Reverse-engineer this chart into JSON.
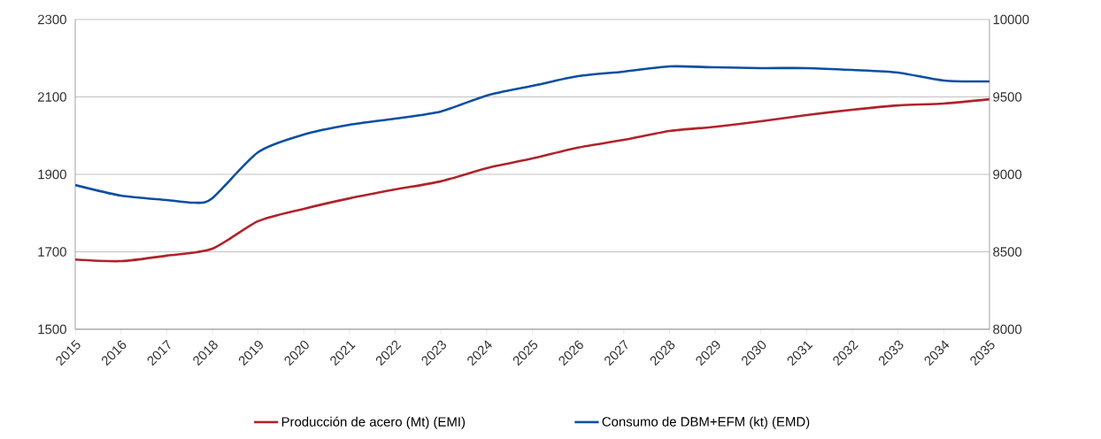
{
  "chart_data": {
    "type": "line",
    "xlim": [
      2015,
      2035
    ],
    "xticks": [
      2015,
      2016,
      2017,
      2018,
      2019,
      2020,
      2021,
      2022,
      2023,
      2024,
      2025,
      2026,
      2027,
      2028,
      2029,
      2030,
      2031,
      2032,
      2033,
      2034,
      2035
    ],
    "ylim": [
      1500,
      2300
    ],
    "yticks": [
      1500,
      1700,
      1900,
      2100,
      2300
    ],
    "y2lim": [
      8000,
      10000
    ],
    "y2ticks": [
      8000,
      8500,
      9000,
      9500,
      10000
    ],
    "grid": "y",
    "legend": "bottom",
    "marker": "none",
    "line_style": "solid",
    "series": [
      {
        "name": "Producción de acero (Mt) (EMI)",
        "color": "#b0232a",
        "x": [
          2015,
          2016,
          2017,
          2018,
          2019,
          2020,
          2021,
          2022,
          2023,
          2024,
          2025,
          2026,
          2027,
          2028,
          2029,
          2030,
          2031,
          2032,
          2033,
          2034,
          2035
        ],
        "values": [
          1680,
          1676,
          1690,
          1708,
          1779,
          1811,
          1838,
          1861,
          1882,
          1916,
          1941,
          1969,
          1989,
          2012,
          2023,
          2037,
          2053,
          2067,
          2078,
          2083,
          2094
        ]
      },
      {
        "name": "Consumo de DBM+EFM  (kt) (EMD)",
        "color": "#0b4ea2",
        "axis": "y2",
        "x": [
          2015,
          2016,
          2017,
          2017.6,
          2018,
          2019,
          2020,
          2021,
          2022,
          2023,
          2024,
          2025,
          2026,
          2027,
          2028,
          2029,
          2030,
          2031,
          2032,
          2033,
          2034,
          2035
        ],
        "values": [
          8931,
          8863,
          8834,
          8817,
          8846,
          9143,
          9257,
          9320,
          9360,
          9406,
          9509,
          9571,
          9634,
          9663,
          9697,
          9691,
          9686,
          9686,
          9674,
          9657,
          9606,
          9600
        ]
      }
    ]
  }
}
